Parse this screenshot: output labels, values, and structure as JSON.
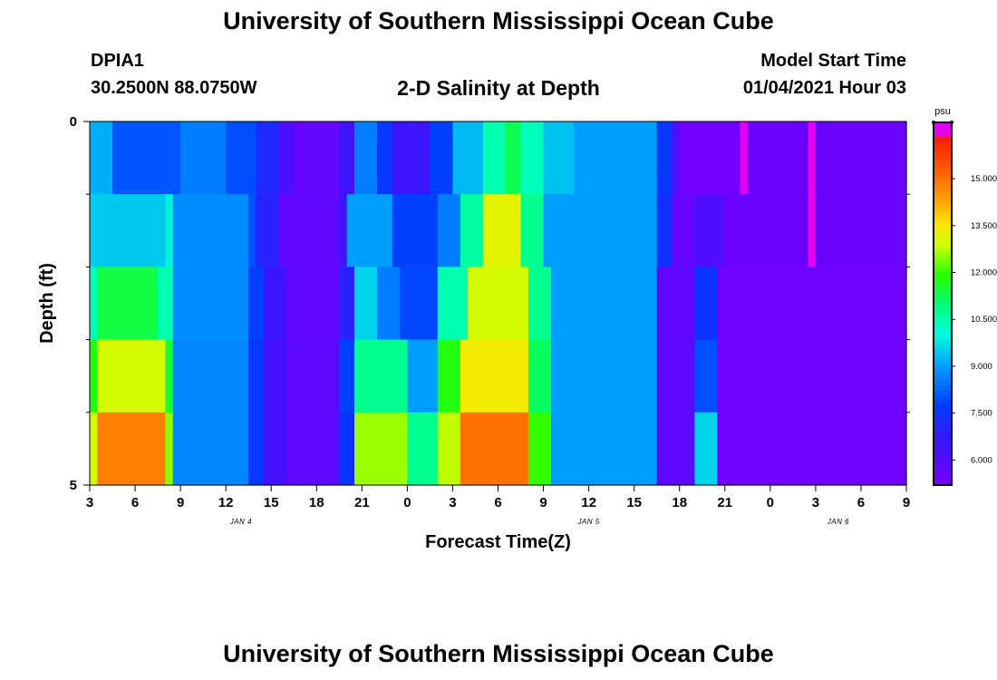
{
  "header": {
    "title": "University of Southern Mississippi Ocean Cube",
    "station": "DPIA1",
    "coords": "30.2500N 88.0750W",
    "chart_title": "2-D Salinity at Depth",
    "start_label": "Model Start Time",
    "start_value": "01/04/2021 Hour 03"
  },
  "footer": {
    "title": "University of Southern Mississippi Ocean Cube"
  },
  "chart_data": {
    "type": "heatmap",
    "title": "2-D Salinity at Depth",
    "xlabel": "Forecast Time(Z)",
    "ylabel": "Depth (ft)",
    "x_range_hours": [
      3,
      57
    ],
    "y_range_ft": [
      0,
      5
    ],
    "x_tick_hours": [
      3,
      6,
      9,
      12,
      15,
      18,
      21,
      24,
      27,
      30,
      33,
      36,
      39,
      42,
      45,
      48,
      51,
      54,
      57
    ],
    "x_tick_labels": [
      "3",
      "6",
      "9",
      "12",
      "15",
      "18",
      "21",
      "0",
      "3",
      "6",
      "9",
      "12",
      "15",
      "18",
      "21",
      "0",
      "3",
      "6",
      "9"
    ],
    "date_labels": [
      {
        "hour": 13,
        "label": "JAN 4"
      },
      {
        "hour": 36,
        "label": "JAN 5"
      },
      {
        "hour": 52.5,
        "label": "JAN 6"
      }
    ],
    "y_major_ticks": [
      0,
      5
    ],
    "y_minor_ticks": [
      1,
      2,
      3,
      4
    ],
    "colorbar": {
      "unit": "psu",
      "min": 5.2,
      "max": 16.8,
      "ticks": [
        6.0,
        7.5,
        9.0,
        10.5,
        12.0,
        13.5,
        15.0
      ],
      "tick_labels": [
        "6.000",
        "7.500",
        "9.000",
        "10.500",
        "12.000",
        "13.500",
        "15.000"
      ]
    },
    "depth_bin_top_ft": [
      0,
      1,
      2,
      3,
      4
    ],
    "depth_bin_bottom_ft": [
      1,
      2,
      3,
      4,
      5
    ],
    "layers": [
      {
        "depth": "0-1 ft",
        "segments": [
          {
            "start": 3,
            "end": 4.5,
            "value": 9.2
          },
          {
            "start": 4.5,
            "end": 9,
            "value": 8.1
          },
          {
            "start": 9,
            "end": 12,
            "value": 8.6
          },
          {
            "start": 12,
            "end": 14,
            "value": 8.0
          },
          {
            "start": 14,
            "end": 15.5,
            "value": 7.2
          },
          {
            "start": 15.5,
            "end": 16.5,
            "value": 6.2
          },
          {
            "start": 16.5,
            "end": 19.5,
            "value": 5.6
          },
          {
            "start": 19.5,
            "end": 20.5,
            "value": 6.5
          },
          {
            "start": 20.5,
            "end": 22,
            "value": 8.6
          },
          {
            "start": 22,
            "end": 23,
            "value": 7.6
          },
          {
            "start": 23,
            "end": 25.5,
            "value": 6.6
          },
          {
            "start": 25.5,
            "end": 27,
            "value": 7.8
          },
          {
            "start": 27,
            "end": 29,
            "value": 9.3
          },
          {
            "start": 29,
            "end": 30.5,
            "value": 10.5
          },
          {
            "start": 30.5,
            "end": 31.5,
            "value": 11.3
          },
          {
            "start": 31.5,
            "end": 33,
            "value": 10.4
          },
          {
            "start": 33,
            "end": 35,
            "value": 9.4
          },
          {
            "start": 35,
            "end": 40.5,
            "value": 9.0
          },
          {
            "start": 40.5,
            "end": 41.5,
            "value": 7.6
          },
          {
            "start": 41.5,
            "end": 42,
            "value": 6.2
          },
          {
            "start": 42,
            "end": 46,
            "value": 5.3
          },
          {
            "start": 46,
            "end": 46.5,
            "value": 16.6
          },
          {
            "start": 46.5,
            "end": 50.5,
            "value": 5.5
          },
          {
            "start": 50.5,
            "end": 51,
            "value": 16.6
          },
          {
            "start": 51,
            "end": 57,
            "value": 5.5
          }
        ]
      },
      {
        "depth": "1-2 ft",
        "segments": [
          {
            "start": 3,
            "end": 8,
            "value": 9.5
          },
          {
            "start": 8,
            "end": 8.5,
            "value": 9.9
          },
          {
            "start": 8.5,
            "end": 13.5,
            "value": 8.8
          },
          {
            "start": 13.5,
            "end": 14,
            "value": 8.0
          },
          {
            "start": 14,
            "end": 15.5,
            "value": 7.0
          },
          {
            "start": 15.5,
            "end": 19.5,
            "value": 5.7
          },
          {
            "start": 19.5,
            "end": 20,
            "value": 6.5
          },
          {
            "start": 20,
            "end": 23,
            "value": 9.0
          },
          {
            "start": 23,
            "end": 26,
            "value": 7.8
          },
          {
            "start": 26,
            "end": 27.5,
            "value": 8.6
          },
          {
            "start": 27.5,
            "end": 29,
            "value": 10.6
          },
          {
            "start": 29,
            "end": 31.5,
            "value": 13.2
          },
          {
            "start": 31.5,
            "end": 33,
            "value": 10.8
          },
          {
            "start": 33,
            "end": 40.5,
            "value": 9.0
          },
          {
            "start": 40.5,
            "end": 41.5,
            "value": 7.4
          },
          {
            "start": 41.5,
            "end": 43,
            "value": 5.6
          },
          {
            "start": 43,
            "end": 45,
            "value": 6.1
          },
          {
            "start": 45,
            "end": 50.5,
            "value": 5.5
          },
          {
            "start": 50.5,
            "end": 51,
            "value": 16.5
          },
          {
            "start": 51,
            "end": 57,
            "value": 5.5
          }
        ]
      },
      {
        "depth": "2-3 ft",
        "segments": [
          {
            "start": 3,
            "end": 3.5,
            "value": 10.4
          },
          {
            "start": 3.5,
            "end": 7.5,
            "value": 11.4
          },
          {
            "start": 7.5,
            "end": 8.5,
            "value": 10.5
          },
          {
            "start": 8.5,
            "end": 13.5,
            "value": 8.8
          },
          {
            "start": 13.5,
            "end": 14.5,
            "value": 7.8
          },
          {
            "start": 14.5,
            "end": 16,
            "value": 6.6
          },
          {
            "start": 16,
            "end": 19.5,
            "value": 5.7
          },
          {
            "start": 19.5,
            "end": 20.5,
            "value": 7.0
          },
          {
            "start": 20.5,
            "end": 22,
            "value": 9.6
          },
          {
            "start": 22,
            "end": 23.5,
            "value": 8.6
          },
          {
            "start": 23.5,
            "end": 26,
            "value": 7.9
          },
          {
            "start": 26,
            "end": 28,
            "value": 10.5
          },
          {
            "start": 28,
            "end": 32,
            "value": 13.0
          },
          {
            "start": 32,
            "end": 33.5,
            "value": 10.8
          },
          {
            "start": 33.5,
            "end": 40.5,
            "value": 9.0
          },
          {
            "start": 40.5,
            "end": 43,
            "value": 5.7
          },
          {
            "start": 43,
            "end": 44.5,
            "value": 7.5
          },
          {
            "start": 44.5,
            "end": 57,
            "value": 5.4
          }
        ]
      },
      {
        "depth": "3-4 ft",
        "segments": [
          {
            "start": 3,
            "end": 3.5,
            "value": 11.8
          },
          {
            "start": 3.5,
            "end": 8,
            "value": 13.0
          },
          {
            "start": 8,
            "end": 8.5,
            "value": 11.5
          },
          {
            "start": 8.5,
            "end": 13.5,
            "value": 8.7
          },
          {
            "start": 13.5,
            "end": 14.5,
            "value": 7.6
          },
          {
            "start": 14.5,
            "end": 16,
            "value": 6.4
          },
          {
            "start": 16,
            "end": 19.5,
            "value": 5.8
          },
          {
            "start": 19.5,
            "end": 20.5,
            "value": 7.8
          },
          {
            "start": 20.5,
            "end": 24,
            "value": 10.8
          },
          {
            "start": 24,
            "end": 26,
            "value": 9.0
          },
          {
            "start": 26,
            "end": 27.5,
            "value": 11.8
          },
          {
            "start": 27.5,
            "end": 32,
            "value": 13.4
          },
          {
            "start": 32,
            "end": 33.5,
            "value": 11.2
          },
          {
            "start": 33.5,
            "end": 40.5,
            "value": 9.0
          },
          {
            "start": 40.5,
            "end": 43,
            "value": 5.8
          },
          {
            "start": 43,
            "end": 44.5,
            "value": 8.0
          },
          {
            "start": 44.5,
            "end": 57,
            "value": 5.4
          }
        ]
      },
      {
        "depth": "4-5 ft",
        "segments": [
          {
            "start": 3,
            "end": 3.5,
            "value": 13.0
          },
          {
            "start": 3.5,
            "end": 8,
            "value": 14.8
          },
          {
            "start": 8,
            "end": 8.5,
            "value": 12.5
          },
          {
            "start": 8.5,
            "end": 13.5,
            "value": 8.7
          },
          {
            "start": 13.5,
            "end": 14.5,
            "value": 7.6
          },
          {
            "start": 14.5,
            "end": 16,
            "value": 6.4
          },
          {
            "start": 16,
            "end": 19.5,
            "value": 5.8
          },
          {
            "start": 19.5,
            "end": 20.5,
            "value": 7.5
          },
          {
            "start": 20.5,
            "end": 24,
            "value": 12.6
          },
          {
            "start": 24,
            "end": 26,
            "value": 10.8
          },
          {
            "start": 26,
            "end": 27.5,
            "value": 12.8
          },
          {
            "start": 27.5,
            "end": 32,
            "value": 15.0
          },
          {
            "start": 32,
            "end": 33.5,
            "value": 12.0
          },
          {
            "start": 33.5,
            "end": 40.5,
            "value": 9.0
          },
          {
            "start": 40.5,
            "end": 43,
            "value": 5.8
          },
          {
            "start": 43,
            "end": 44.5,
            "value": 9.6
          },
          {
            "start": 44.5,
            "end": 57,
            "value": 5.4
          }
        ]
      }
    ]
  }
}
